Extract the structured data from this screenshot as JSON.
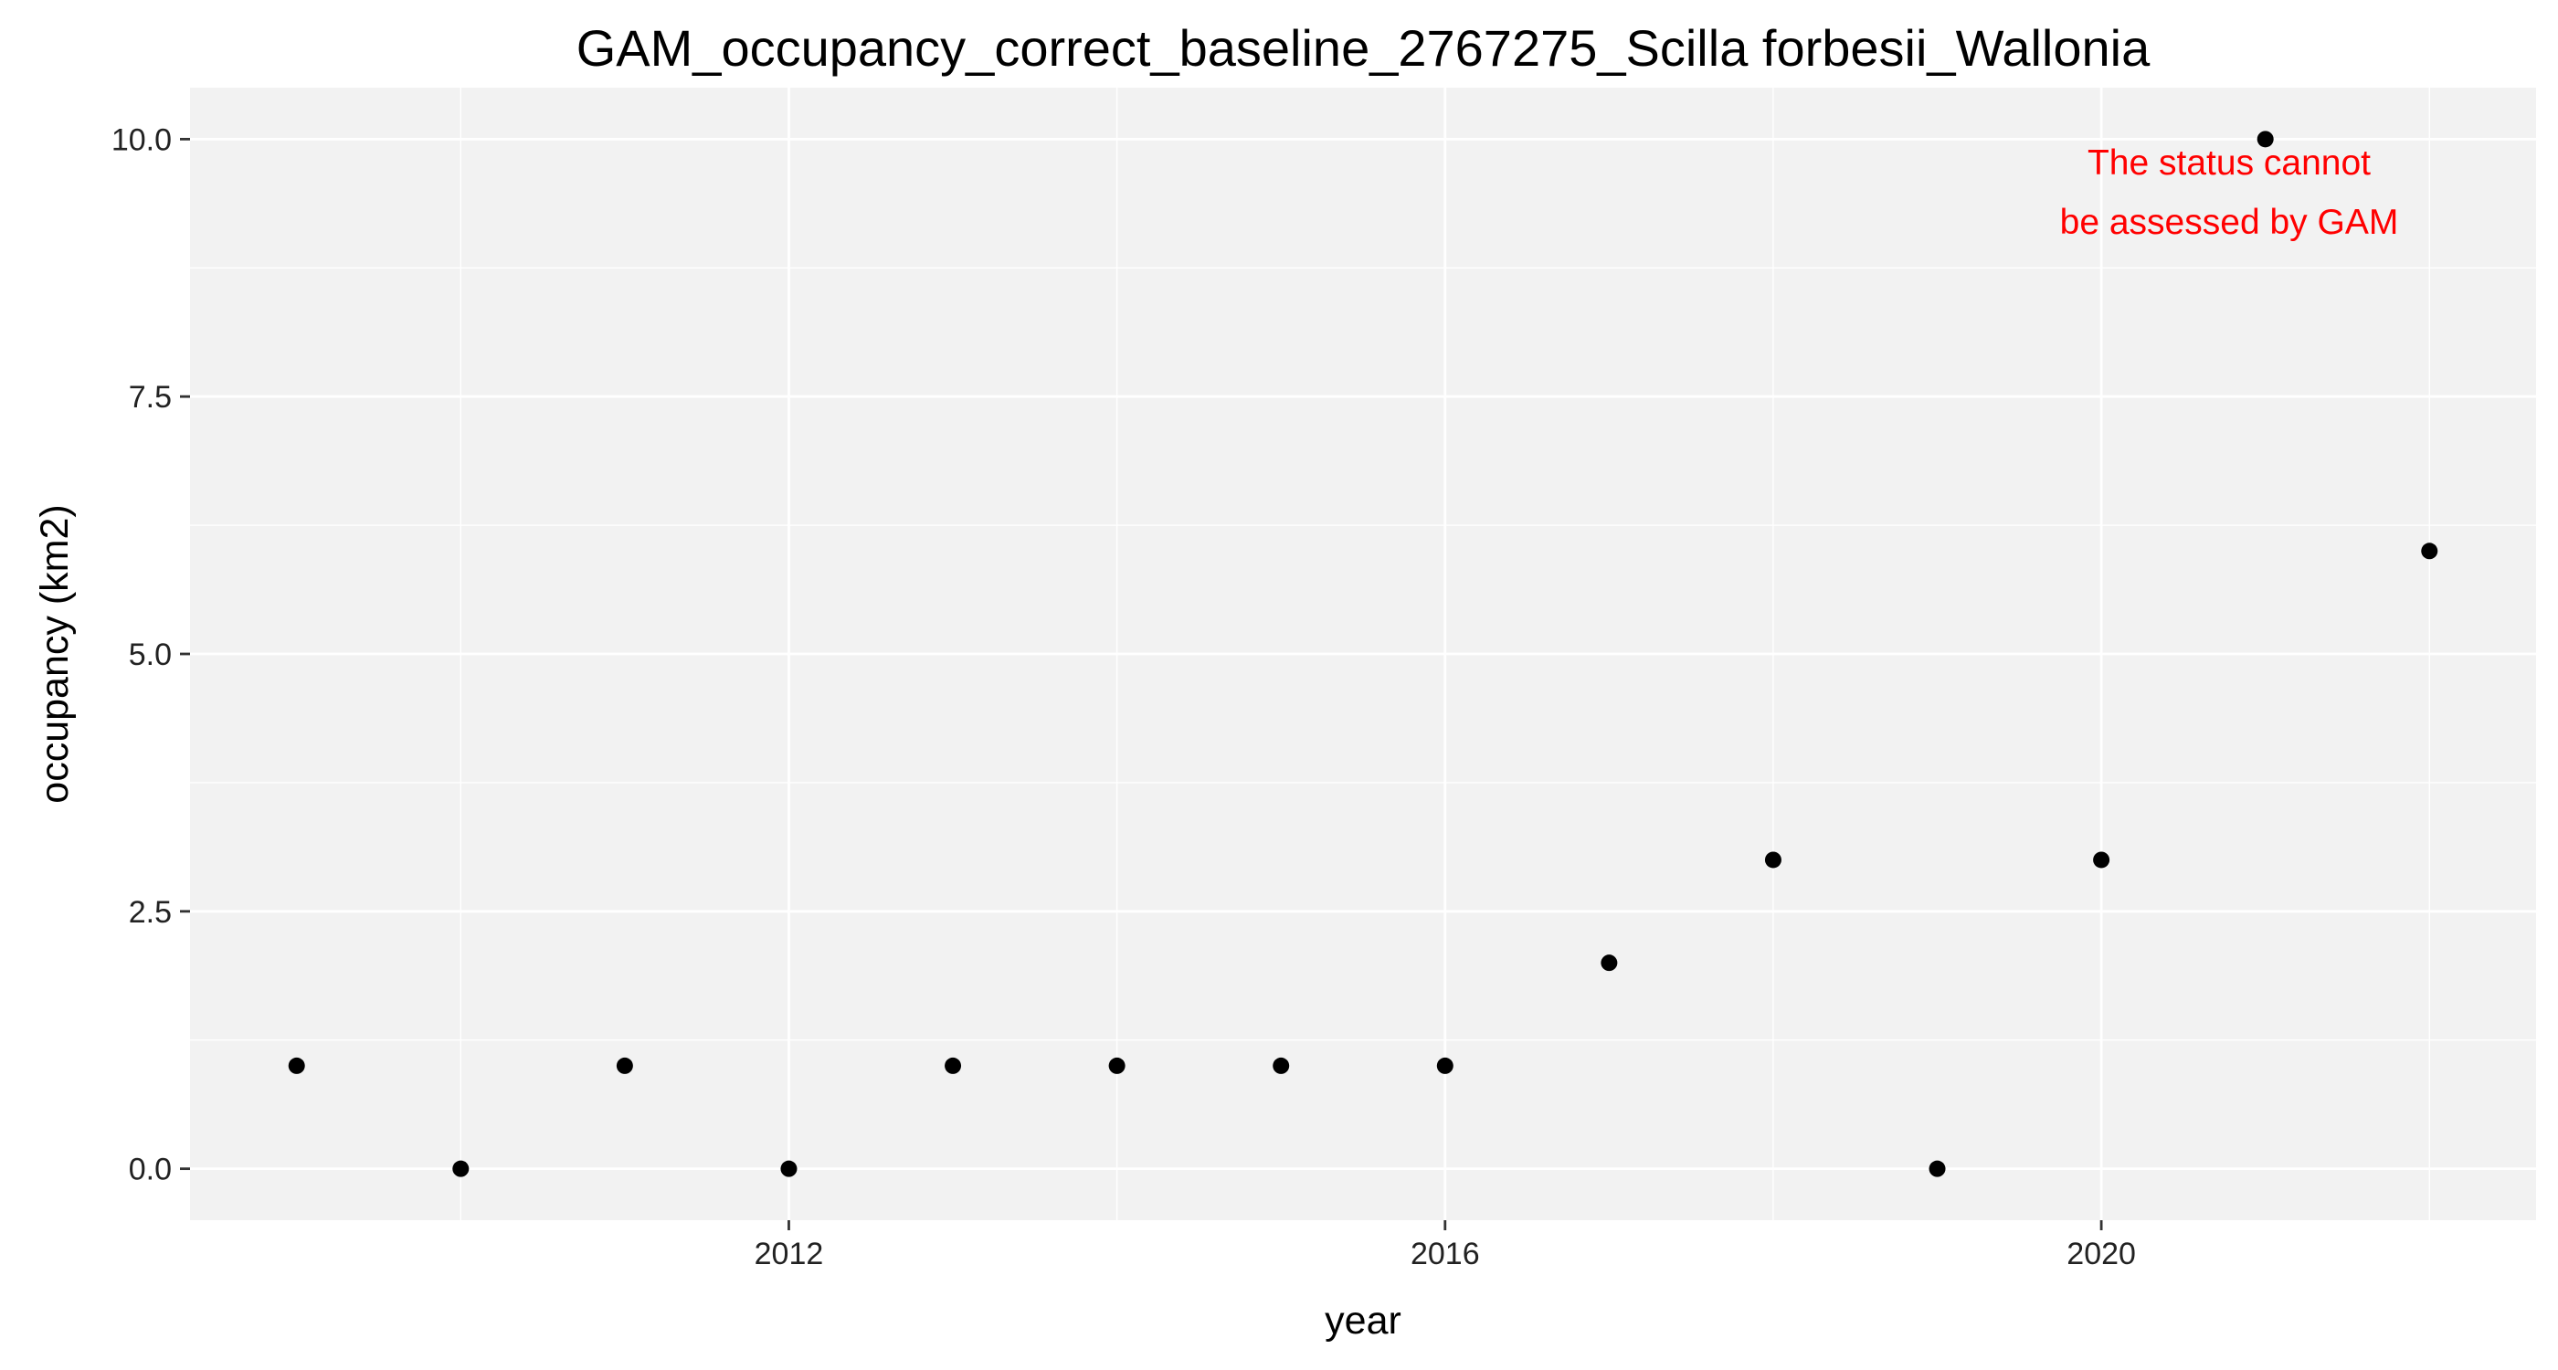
{
  "chart_data": {
    "type": "scatter",
    "title": "GAM_occupancy_correct_baseline_2767275_Scilla forbesii_Wallonia",
    "xlabel": "year",
    "ylabel": "occupancy (km2)",
    "x_ticks": [
      2012,
      2016,
      2020
    ],
    "y_ticks": [
      "0.0",
      "2.5",
      "5.0",
      "7.5",
      "10.0"
    ],
    "xlim": [
      2008.35,
      2022.65
    ],
    "ylim": [
      -0.5,
      10.5
    ],
    "grid": true,
    "legend": "none",
    "background_color": "#f2f2f2",
    "grid_color": "#ffffff",
    "point_color": "#000000",
    "series": [
      {
        "x": [
          2009,
          2010,
          2011,
          2012,
          2013,
          2014,
          2015,
          2016,
          2017,
          2018,
          2019,
          2020,
          2021,
          2022
        ],
        "y": [
          1,
          0,
          1,
          0,
          1,
          1,
          1,
          1,
          2,
          3,
          0,
          3,
          10,
          6
        ]
      }
    ],
    "annotation": {
      "lines": [
        "The status cannot",
        "be assessed by GAM"
      ],
      "color": "#ff0000",
      "position": "top-right"
    }
  }
}
